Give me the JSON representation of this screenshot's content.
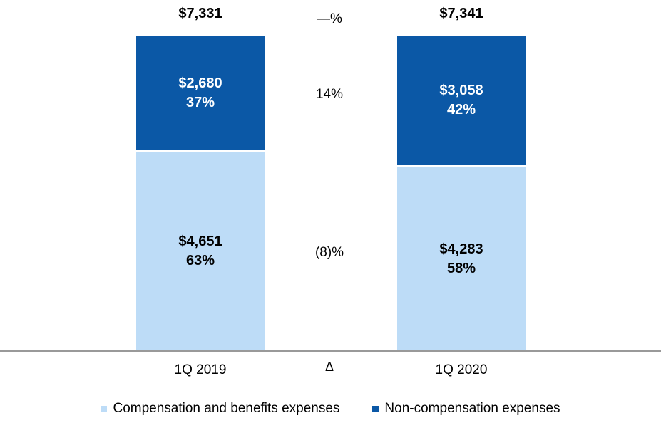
{
  "colors": {
    "non_compensation": "#0B58A6",
    "compensation": "#BDDCF7",
    "axis_line": "#999999",
    "label_on_dark": "#FFFFFF",
    "label_on_light": "#000000"
  },
  "chart_data": {
    "type": "bar",
    "stacked": true,
    "grid": false,
    "categories": [
      "1Q 2019",
      "1Q 2020"
    ],
    "series": [
      {
        "name": "Compensation and benefits expenses",
        "color": "#BDDCF7",
        "values": [
          4651,
          4283
        ]
      },
      {
        "name": "Non-compensation expenses",
        "color": "#0B58A6",
        "values": [
          2680,
          3058
        ]
      }
    ],
    "bars": [
      {
        "category": "1Q 2019",
        "total": {
          "value": 7331,
          "label": "$7,331"
        },
        "segments": {
          "non_compensation": {
            "value": 2680,
            "value_label": "$2,680",
            "pct_label": "37%"
          },
          "compensation": {
            "value": 4651,
            "value_label": "$4,651",
            "pct_label": "63%"
          }
        }
      },
      {
        "category": "1Q 2020",
        "total": {
          "value": 7341,
          "label": "$7,341"
        },
        "segments": {
          "non_compensation": {
            "value": 3058,
            "value_label": "$3,058",
            "pct_label": "42%"
          },
          "compensation": {
            "value": 4283,
            "value_label": "$4,283",
            "pct_label": "58%"
          }
        }
      }
    ],
    "delta": {
      "symbol": "Δ",
      "total_change": "—%",
      "non_compensation_change": "14%",
      "compensation_change": "(8)%"
    }
  },
  "legend": {
    "items": [
      {
        "label": "Compensation and benefits expenses",
        "color_key": "compensation"
      },
      {
        "label": "Non-compensation expenses",
        "color_key": "non_compensation"
      }
    ]
  }
}
